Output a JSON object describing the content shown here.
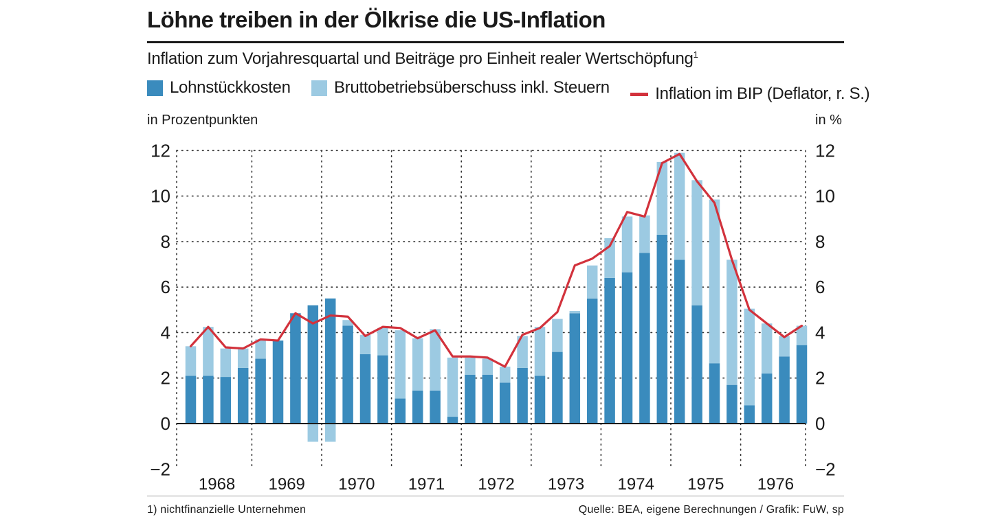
{
  "header": {
    "title": "Löhne treiben in der Ölkrise die US-Inflation",
    "subtitle": "Inflation zum Vorjahresquartal und Beiträge pro Einheit realer Wertschöpfung",
    "subtitle_footnote_mark": "1"
  },
  "legend": {
    "lohn": "Lohnstückkosten",
    "brutto": "Bruttobetriebsüberschuss inkl. Steuern",
    "inflation": "Inflation im BIP (Deflator, r. S.)"
  },
  "axes": {
    "left_unit": "in Prozentpunkten",
    "right_unit": "in %"
  },
  "footer": {
    "footnote": "1) nichtfinanzielle Unternehmen",
    "source": "Quelle: BEA, eigene Berechnungen / Grafik: FuW, sp"
  },
  "colors": {
    "lohn": "#3a8bbd",
    "brutto": "#9ccae2",
    "inflation": "#d2323c",
    "grid": "#333333"
  },
  "chart_data": {
    "type": "bar",
    "stacked": true,
    "title": "Löhne treiben in der Ölkrise die US-Inflation",
    "ylabel_left": "in Prozentpunkten",
    "ylabel_right": "in %",
    "ylim": [
      -2,
      12
    ],
    "yticks": [
      "−2",
      "0",
      "2",
      "4",
      "6",
      "8",
      "10",
      "12"
    ],
    "ytick_values": [
      -2,
      0,
      2,
      4,
      6,
      8,
      10,
      12
    ],
    "years": [
      "1968",
      "1969",
      "1970",
      "1971",
      "1972",
      "1973",
      "1974",
      "1975",
      "1976"
    ],
    "quarters": [
      "1968Q1",
      "1968Q2",
      "1968Q3",
      "1968Q4",
      "1969Q1",
      "1969Q2",
      "1969Q3",
      "1969Q4",
      "1970Q1",
      "1970Q2",
      "1970Q3",
      "1970Q4",
      "1971Q1",
      "1971Q2",
      "1971Q3",
      "1971Q4",
      "1972Q1",
      "1972Q2",
      "1972Q3",
      "1972Q4",
      "1973Q1",
      "1973Q2",
      "1973Q3",
      "1973Q4",
      "1974Q1",
      "1974Q2",
      "1974Q3",
      "1974Q4",
      "1975Q1",
      "1975Q2",
      "1975Q3",
      "1975Q4",
      "1976Q1",
      "1976Q2",
      "1976Q3",
      "1976Q4"
    ],
    "series": [
      {
        "name": "Lohnstückkosten",
        "values": [
          2.1,
          2.1,
          2.05,
          2.45,
          2.85,
          3.65,
          4.85,
          5.2,
          5.5,
          4.3,
          3.05,
          3.0,
          1.1,
          1.45,
          1.45,
          0.3,
          2.15,
          2.15,
          1.8,
          2.45,
          2.1,
          3.15,
          4.85,
          5.5,
          6.4,
          6.65,
          7.5,
          8.3,
          7.2,
          5.2,
          2.65,
          1.7,
          0.8,
          2.2,
          2.95,
          3.45
        ]
      },
      {
        "name": "Bruttobetriebsüberschuss inkl. Steuern",
        "values": [
          1.3,
          2.15,
          1.25,
          0.85,
          0.85,
          0.0,
          0.0,
          -0.8,
          -0.8,
          0.25,
          0.85,
          1.2,
          3.0,
          2.3,
          2.7,
          2.6,
          0.75,
          0.7,
          0.7,
          1.4,
          2.15,
          1.45,
          0.1,
          1.45,
          1.75,
          2.45,
          1.65,
          3.2,
          4.7,
          5.5,
          7.2,
          5.5,
          4.25,
          2.2,
          0.9,
          0.85
        ]
      },
      {
        "name": "Inflation im BIP (Deflator, r. S.)",
        "type": "line",
        "values": [
          3.4,
          4.25,
          3.35,
          3.3,
          3.7,
          3.65,
          4.85,
          4.4,
          4.75,
          4.7,
          3.85,
          4.25,
          4.2,
          3.75,
          4.1,
          2.95,
          2.95,
          2.9,
          2.5,
          3.9,
          4.2,
          4.9,
          6.95,
          7.25,
          7.8,
          9.3,
          9.1,
          11.45,
          11.85,
          10.65,
          9.7,
          7.2,
          5.0,
          4.4,
          3.8,
          4.3
        ]
      }
    ]
  }
}
